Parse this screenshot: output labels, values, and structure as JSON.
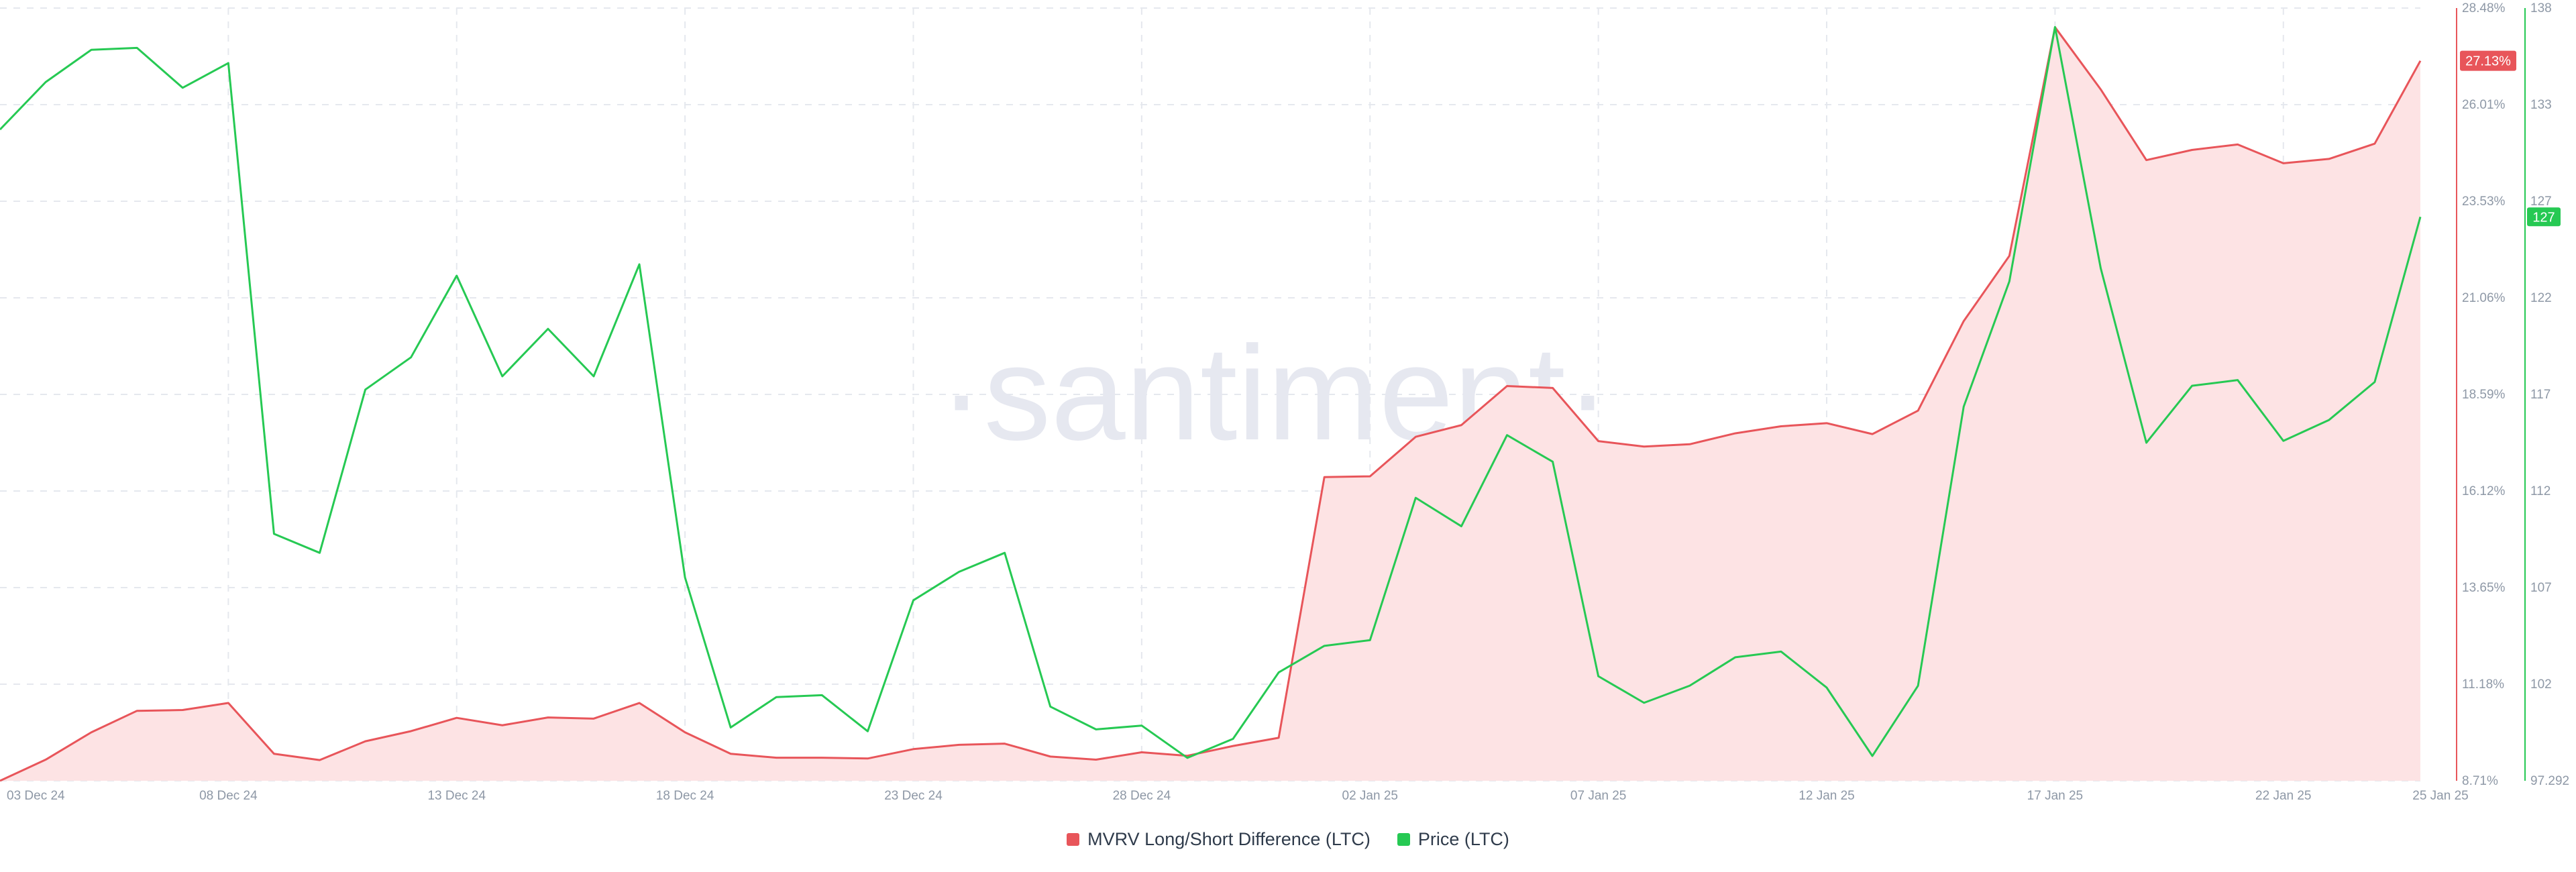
{
  "chart_data": {
    "type": "line",
    "watermark": "·santiment·",
    "x": [
      "03 Dec 24",
      "04 Dec 24",
      "05 Dec 24",
      "06 Dec 24",
      "07 Dec 24",
      "08 Dec 24",
      "09 Dec 24",
      "10 Dec 24",
      "11 Dec 24",
      "12 Dec 24",
      "13 Dec 24",
      "14 Dec 24",
      "15 Dec 24",
      "16 Dec 24",
      "17 Dec 24",
      "18 Dec 24",
      "19 Dec 24",
      "20 Dec 24",
      "21 Dec 24",
      "22 Dec 24",
      "23 Dec 24",
      "24 Dec 24",
      "25 Dec 24",
      "26 Dec 24",
      "27 Dec 24",
      "28 Dec 24",
      "29 Dec 24",
      "30 Dec 24",
      "31 Dec 24",
      "01 Jan 25",
      "02 Jan 25",
      "03 Jan 25",
      "04 Jan 25",
      "05 Jan 25",
      "06 Jan 25",
      "07 Jan 25",
      "08 Jan 25",
      "09 Jan 25",
      "10 Jan 25",
      "11 Jan 25",
      "12 Jan 25",
      "13 Jan 25",
      "14 Jan 25",
      "15 Jan 25",
      "16 Jan 25",
      "17 Jan 25",
      "18 Jan 25",
      "19 Jan 25",
      "20 Jan 25",
      "21 Jan 25",
      "22 Jan 25",
      "23 Jan 25",
      "24 Jan 25",
      "25 Jan 25"
    ],
    "x_tick_labels": [
      "03 Dec 24",
      "08 Dec 24",
      "13 Dec 24",
      "18 Dec 24",
      "23 Dec 24",
      "28 Dec 24",
      "02 Jan 25",
      "07 Jan 25",
      "12 Jan 25",
      "17 Jan 25",
      "22 Jan 25",
      "25 Jan 25"
    ],
    "series": [
      {
        "name": "MVRV Long/Short Difference (LTC)",
        "axis": "left",
        "color": "#e8555a",
        "fill": "#fde3e4",
        "current_label": "27.13%",
        "values": [
          8.71,
          9.25,
          9.95,
          10.5,
          10.52,
          10.7,
          9.4,
          9.24,
          9.72,
          9.98,
          10.32,
          10.13,
          10.33,
          10.3,
          10.7,
          9.95,
          9.4,
          9.3,
          9.3,
          9.28,
          9.52,
          9.63,
          9.66,
          9.33,
          9.25,
          9.44,
          9.35,
          9.6,
          9.81,
          16.48,
          16.5,
          17.51,
          17.81,
          18.81,
          18.76,
          17.4,
          17.26,
          17.32,
          17.6,
          17.78,
          17.86,
          17.58,
          18.18,
          20.47,
          22.14,
          27.99,
          26.4,
          24.59,
          24.85,
          24.99,
          24.51,
          24.62,
          25.01,
          27.13
        ]
      },
      {
        "name": "Price (LTC)",
        "axis": "right",
        "color": "#26c953",
        "current_label": "127",
        "values": [
          131.6,
          134.1,
          135.8,
          135.9,
          133.8,
          135.1,
          110.3,
          109.3,
          117.9,
          119.6,
          123.9,
          118.6,
          121.1,
          118.6,
          124.5,
          108.0,
          100.1,
          101.7,
          101.8,
          99.9,
          106.8,
          108.3,
          109.3,
          101.2,
          100.0,
          100.2,
          98.5,
          99.5,
          103.0,
          104.4,
          104.7,
          112.2,
          110.7,
          115.5,
          114.1,
          102.8,
          101.4,
          102.3,
          103.8,
          104.1,
          102.2,
          98.6,
          102.3,
          117.0,
          123.6,
          137.0,
          124.3,
          115.1,
          118.1,
          118.4,
          115.2,
          116.3,
          118.3,
          127.0
        ]
      }
    ],
    "y_left": {
      "ticks": [
        "8.71%",
        "11.18%",
        "13.65%",
        "16.12%",
        "18.59%",
        "21.06%",
        "23.53%",
        "26.01%",
        "28.48%"
      ],
      "ylim": [
        8.71,
        28.48
      ]
    },
    "y_right": {
      "ticks": [
        "97.292",
        "102",
        "107",
        "112",
        "117",
        "122",
        "127",
        "133",
        "138"
      ],
      "ylim": [
        97.292,
        138
      ]
    },
    "grid": true,
    "legend_position": "bottom-center",
    "legend": [
      {
        "label": "MVRV Long/Short Difference (LTC)",
        "color": "#e8555a"
      },
      {
        "label": "Price (LTC)",
        "color": "#26c953"
      }
    ]
  }
}
